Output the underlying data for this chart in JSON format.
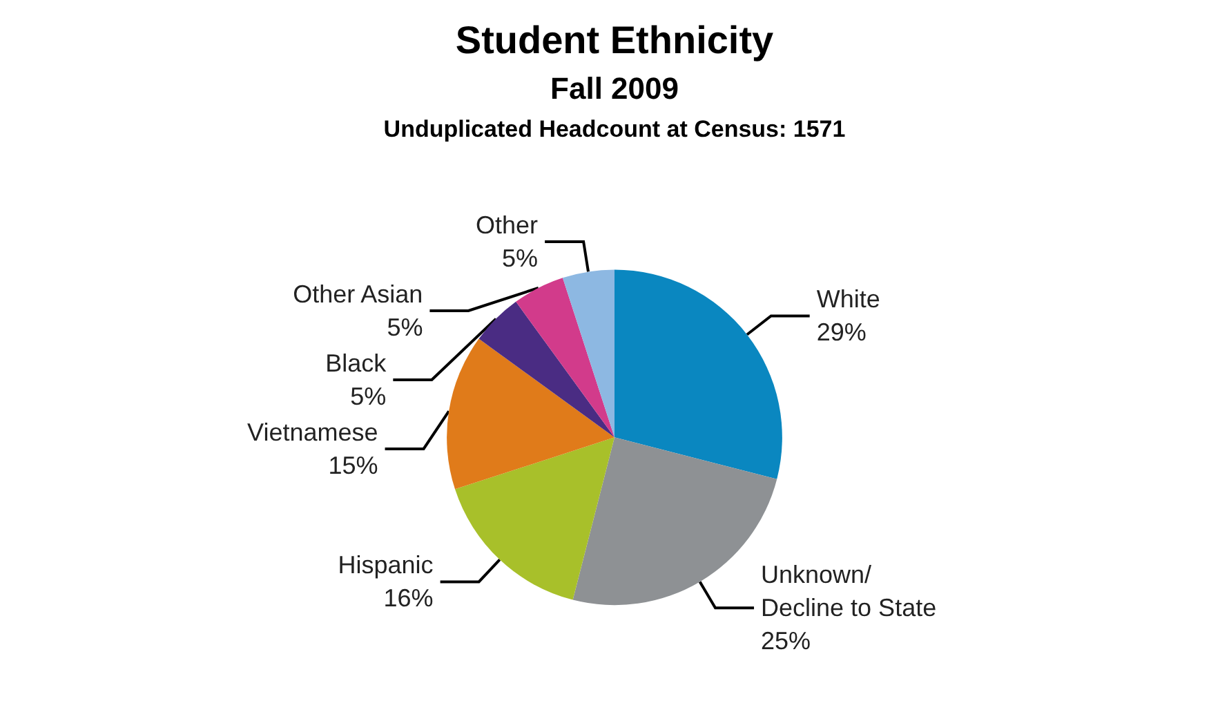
{
  "chart_data": {
    "type": "pie",
    "title": "Student Ethnicity",
    "subtitle": "Fall 2009",
    "annotations": [
      "Unduplicated Headcount at Census: 1571"
    ],
    "categories": [
      "White",
      "Unknown/\nDecline to State",
      "Hispanic",
      "Vietnamese",
      "Black",
      "Other Asian",
      "Other"
    ],
    "values": [
      29,
      25,
      16,
      15,
      5,
      5,
      5
    ],
    "colors": [
      "#0a87c0",
      "#8e9194",
      "#a8c02a",
      "#e07b1a",
      "#4a2c83",
      "#d23b8b",
      "#8db8e2"
    ],
    "value_labels": [
      "29%",
      "25%",
      "16%",
      "15%",
      "5%",
      "5%",
      "5%"
    ],
    "legend": false
  }
}
